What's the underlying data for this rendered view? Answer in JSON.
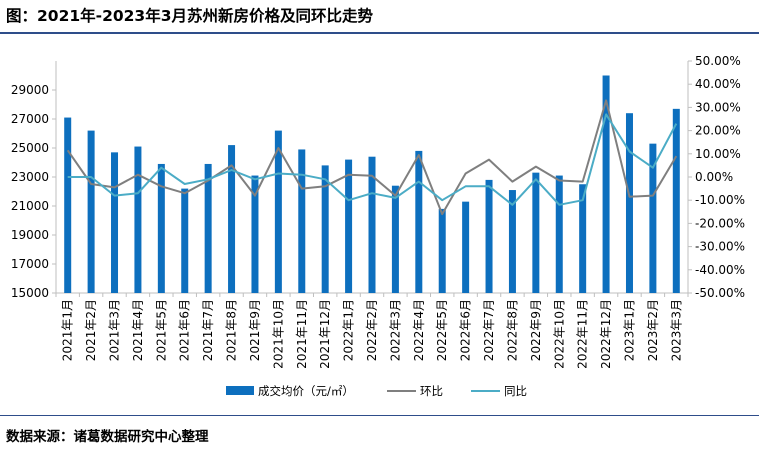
{
  "title": "图：2021年-2023年3月苏州新房价格及同环比走势",
  "source": "数据来源：诸葛数据研究中心整理",
  "colors": {
    "bar": "#0d6fbe",
    "mom": "#7f7f7f",
    "yoy": "#4bacc6"
  },
  "chart_data": {
    "type": "bar",
    "title": "",
    "xlabel": "",
    "ylabel": "",
    "legend_position": "bottom",
    "grid": false,
    "categories": [
      "2021年1月",
      "2021年2月",
      "2021年3月",
      "2021年4月",
      "2021年5月",
      "2021年6月",
      "2021年7月",
      "2021年8月",
      "2021年9月",
      "2021年10月",
      "2021年11月",
      "2021年12月",
      "2022年1月",
      "2022年2月",
      "2022年3月",
      "2022年4月",
      "2022年5月",
      "2022年6月",
      "2022年7月",
      "2022年8月",
      "2022年9月",
      "2022年10月",
      "2022年11月",
      "2022年12月",
      "2023年1月",
      "2023年2月",
      "2023年3月"
    ],
    "y_left": {
      "min": 15000,
      "max": 31000,
      "ticks": [
        15000,
        17000,
        19000,
        21000,
        23000,
        25000,
        27000,
        29000
      ],
      "tick_labels": [
        "15000",
        "17000",
        "19000",
        "21000",
        "23000",
        "25000",
        "27000",
        "29000"
      ]
    },
    "y_right": {
      "min": -50,
      "max": 50,
      "ticks": [
        -50,
        -40,
        -30,
        -20,
        -10,
        0,
        10,
        20,
        30,
        40,
        50
      ],
      "tick_labels": [
        "-50.00%",
        "-40.00%",
        "-30.00%",
        "-20.00%",
        "-10.00%",
        "0.00%",
        "10.00%",
        "20.00%",
        "30.00%",
        "40.00%",
        "50.00%"
      ]
    },
    "series": [
      {
        "name": "成交均价（元/㎡）",
        "type": "bar",
        "axis": "left",
        "values": [
          27100,
          26200,
          24700,
          25100,
          23900,
          22200,
          23900,
          25200,
          23100,
          26200,
          24900,
          23800,
          24200,
          24400,
          22400,
          24800,
          20800,
          21300,
          22800,
          22100,
          23300,
          23100,
          22500,
          30000,
          27400,
          25300,
          27700
        ]
      },
      {
        "name": "环比",
        "type": "line",
        "axis": "right",
        "values": [
          11.5,
          -3,
          -4.5,
          1,
          -4,
          -7,
          -1.5,
          5,
          -8,
          12.5,
          -5,
          -4,
          1,
          0.5,
          -8,
          9.5,
          -16,
          1.5,
          7.5,
          -2,
          4.5,
          -1.5,
          -2,
          33,
          -8.5,
          -8,
          9
        ]
      },
      {
        "name": "同比",
        "type": "line",
        "axis": "right",
        "values": [
          0,
          0,
          -8,
          -7,
          4,
          -3,
          -1,
          3,
          -1,
          1.5,
          1,
          -1,
          -10,
          -7,
          -9,
          -2,
          -10,
          -4,
          -4,
          -12,
          -1,
          -12,
          -10,
          27,
          11,
          4,
          23
        ]
      }
    ]
  }
}
